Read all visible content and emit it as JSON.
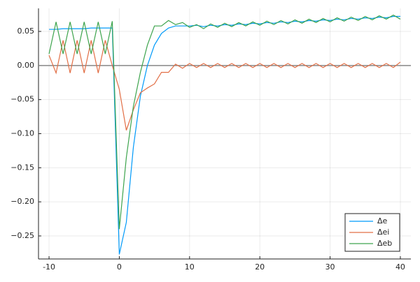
{
  "chart_data": {
    "type": "line",
    "x": [
      -10,
      -9,
      -8,
      -7,
      -6,
      -5,
      -4,
      -3,
      -2,
      -1,
      0,
      1,
      2,
      3,
      4,
      5,
      6,
      7,
      8,
      9,
      10,
      11,
      12,
      13,
      14,
      15,
      16,
      17,
      18,
      19,
      20,
      21,
      22,
      23,
      24,
      25,
      26,
      27,
      28,
      29,
      30,
      31,
      32,
      33,
      34,
      35,
      36,
      37,
      38,
      39,
      40
    ],
    "series": [
      {
        "name": "Δe",
        "color": "#009af9",
        "values": [
          0.053,
          0.053,
          0.054,
          0.054,
          0.054,
          0.054,
          0.055,
          0.055,
          0.055,
          0.055,
          -0.277,
          -0.23,
          -0.12,
          -0.045,
          0.0,
          0.03,
          0.047,
          0.055,
          0.058,
          0.058,
          0.058,
          0.059,
          0.057,
          0.059,
          0.058,
          0.06,
          0.059,
          0.061,
          0.06,
          0.062,
          0.061,
          0.063,
          0.062,
          0.064,
          0.063,
          0.065,
          0.064,
          0.066,
          0.065,
          0.067,
          0.066,
          0.068,
          0.067,
          0.069,
          0.068,
          0.07,
          0.069,
          0.071,
          0.07,
          0.072,
          0.072
        ]
      },
      {
        "name": "Δei",
        "color": "#e26f46",
        "values": [
          0.015,
          -0.011,
          0.037,
          -0.011,
          0.037,
          -0.011,
          0.037,
          -0.011,
          0.037,
          0.0,
          -0.035,
          -0.095,
          -0.065,
          -0.04,
          -0.033,
          -0.027,
          -0.01,
          -0.01,
          0.002,
          -0.004,
          0.003,
          -0.003,
          0.003,
          -0.003,
          0.003,
          -0.003,
          0.003,
          -0.003,
          0.003,
          -0.003,
          0.003,
          -0.003,
          0.003,
          -0.003,
          0.003,
          -0.003,
          0.003,
          -0.003,
          0.003,
          -0.003,
          0.003,
          -0.003,
          0.003,
          -0.003,
          0.003,
          -0.003,
          0.003,
          -0.003,
          0.003,
          -0.003,
          0.005
        ]
      },
      {
        "name": "Δeb",
        "color": "#3da44d",
        "values": [
          0.017,
          0.064,
          0.017,
          0.064,
          0.017,
          0.064,
          0.017,
          0.064,
          0.017,
          0.065,
          -0.24,
          -0.135,
          -0.06,
          -0.01,
          0.03,
          0.058,
          0.058,
          0.066,
          0.06,
          0.063,
          0.056,
          0.06,
          0.054,
          0.061,
          0.056,
          0.062,
          0.057,
          0.063,
          0.058,
          0.064,
          0.059,
          0.065,
          0.06,
          0.066,
          0.061,
          0.067,
          0.062,
          0.068,
          0.063,
          0.069,
          0.064,
          0.07,
          0.065,
          0.071,
          0.066,
          0.072,
          0.067,
          0.073,
          0.068,
          0.074,
          0.068
        ]
      }
    ],
    "hline": 0,
    "xlim": [
      -11.5,
      41.5
    ],
    "ylim": [
      -0.2838,
      0.0838
    ],
    "xticks": [
      -10,
      0,
      10,
      20,
      30,
      40
    ],
    "yticks": [
      0.05,
      {
        "value": 0,
        "label": "0.00"
      },
      {
        "value": -0.05,
        "label": "−0.05"
      },
      {
        "value": -0.1,
        "label": "−0.10"
      },
      {
        "value": -0.15,
        "label": "−0.15"
      },
      {
        "value": -0.2,
        "label": "−0.20"
      },
      {
        "value": -0.25,
        "label": "−0.25"
      }
    ],
    "grid": true,
    "legend": "bottom-right"
  }
}
